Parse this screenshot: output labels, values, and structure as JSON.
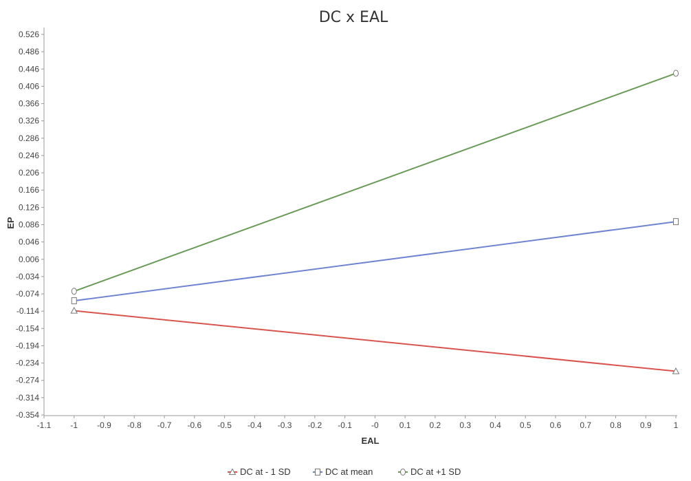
{
  "chart_data": {
    "type": "line",
    "title": "DC x EAL",
    "xlabel": "EAL",
    "ylabel": "EP",
    "xlim": [
      -1.1,
      1.02
    ],
    "ylim": [
      -0.354,
      0.536
    ],
    "x_ticks": [
      "-1.1",
      "-1",
      "-0.9",
      "-0.8",
      "-0.7",
      "-0.6",
      "-0.5",
      "-0.4",
      "-0.3",
      "-0.2",
      "-0.1",
      "-0",
      "0.1",
      "0.2",
      "0.3",
      "0.4",
      "0.5",
      "0.6",
      "0.7",
      "0.8",
      "0.9",
      "1"
    ],
    "x_tick_values": [
      -1.1,
      -1,
      -0.9,
      -0.8,
      -0.7,
      -0.6,
      -0.5,
      -0.4,
      -0.3,
      -0.2,
      -0.1,
      0,
      0.1,
      0.2,
      0.3,
      0.4,
      0.5,
      0.6,
      0.7,
      0.8,
      0.9,
      1
    ],
    "y_ticks": [
      "0.526",
      "0.486",
      "0.446",
      "0.406",
      "0.366",
      "0.326",
      "0.286",
      "0.246",
      "0.206",
      "0.166",
      "0.126",
      "0.086",
      "0.046",
      "0.006",
      "-0.034",
      "-0.074",
      "-0.114",
      "-0.154",
      "-0.194",
      "-0.234",
      "-0.274",
      "-0.314",
      "-0.354"
    ],
    "y_tick_values": [
      0.526,
      0.486,
      0.446,
      0.406,
      0.366,
      0.326,
      0.286,
      0.246,
      0.206,
      0.166,
      0.126,
      0.086,
      0.046,
      0.006,
      -0.034,
      -0.074,
      -0.114,
      -0.154,
      -0.194,
      -0.234,
      -0.274,
      -0.314,
      -0.354
    ],
    "legend_position": "bottom-center",
    "grid": false,
    "series": [
      {
        "name": "DC at - 1 SD",
        "color": "#d9534f",
        "marker": "triangle",
        "x": [
          -1,
          1
        ],
        "y": [
          -0.113,
          -0.253
        ]
      },
      {
        "name": "DC at mean",
        "color": "#6f84d1",
        "marker": "square",
        "x": [
          -1,
          1
        ],
        "y": [
          -0.09,
          0.093
        ]
      },
      {
        "name": "DC at +1 SD",
        "color": "#6a9a58",
        "marker": "circle",
        "x": [
          -1,
          1
        ],
        "y": [
          -0.068,
          0.436
        ]
      }
    ]
  }
}
